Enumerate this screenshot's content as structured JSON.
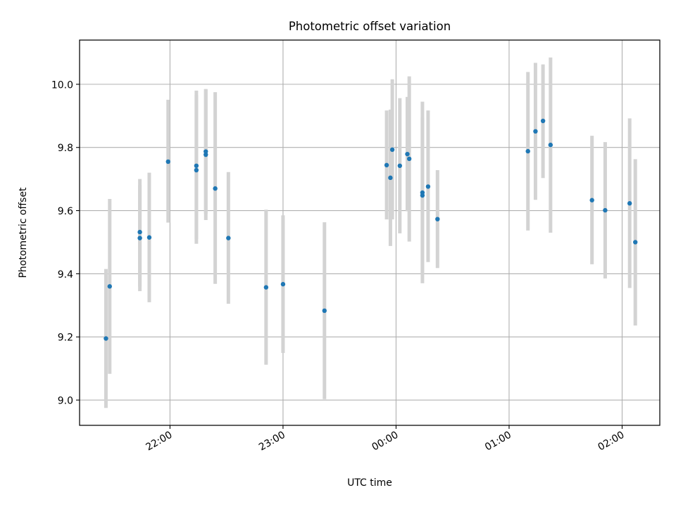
{
  "chart_data": {
    "type": "scatter",
    "title": "Photometric offset variation",
    "xlabel": "UTC time",
    "ylabel": "Photometric offset",
    "grid": true,
    "xlim": [
      "21:12",
      "02:20"
    ],
    "ylim": [
      8.92,
      10.14
    ],
    "x_tick_labels": [
      "22:00",
      "23:00",
      "00:00",
      "01:00",
      "02:00"
    ],
    "y_tick_labels": [
      "9.0",
      "9.2",
      "9.4",
      "9.6",
      "9.8",
      "10.0"
    ],
    "colors": {
      "points": "#1f77b4",
      "error_bars": "#d3d3d3",
      "grid": "#b0b0b0"
    },
    "points": [
      {
        "x": "21:26",
        "y": 9.195,
        "low": 8.975,
        "high": 9.415
      },
      {
        "x": "21:28",
        "y": 9.36,
        "low": 9.083,
        "high": 9.637
      },
      {
        "x": "21:44",
        "y": 9.532,
        "low": 9.36,
        "high": 9.7
      },
      {
        "x": "21:44",
        "y": 9.513,
        "low": 9.345,
        "high": 9.68
      },
      {
        "x": "21:49",
        "y": 9.515,
        "low": 9.31,
        "high": 9.72
      },
      {
        "x": "21:59",
        "y": 9.755,
        "low": 9.562,
        "high": 9.951
      },
      {
        "x": "22:14",
        "y": 9.742,
        "low": 9.51,
        "high": 9.98
      },
      {
        "x": "22:14",
        "y": 9.728,
        "low": 9.495,
        "high": 9.965
      },
      {
        "x": "22:19",
        "y": 9.777,
        "low": 9.57,
        "high": 9.985
      },
      {
        "x": "22:19",
        "y": 9.787,
        "low": 9.59,
        "high": 9.984
      },
      {
        "x": "22:24",
        "y": 9.67,
        "low": 9.368,
        "high": 9.975
      },
      {
        "x": "22:31",
        "y": 9.513,
        "low": 9.305,
        "high": 9.722
      },
      {
        "x": "22:51",
        "y": 9.357,
        "low": 9.112,
        "high": 9.603
      },
      {
        "x": "23:00",
        "y": 9.367,
        "low": 9.149,
        "high": 9.585
      },
      {
        "x": "23:22",
        "y": 9.283,
        "low": 9.003,
        "high": 9.563
      },
      {
        "x": "23:55",
        "y": 9.744,
        "low": 9.572,
        "high": 9.917
      },
      {
        "x": "23:57",
        "y": 9.704,
        "low": 9.488,
        "high": 9.92
      },
      {
        "x": "23:58",
        "y": 9.793,
        "low": 9.572,
        "high": 10.016
      },
      {
        "x": "00:02",
        "y": 9.742,
        "low": 9.528,
        "high": 9.956
      },
      {
        "x": "00:06",
        "y": 9.779,
        "low": 9.598,
        "high": 9.96
      },
      {
        "x": "00:07",
        "y": 9.764,
        "low": 9.502,
        "high": 10.025
      },
      {
        "x": "00:14",
        "y": 9.648,
        "low": 9.4,
        "high": 9.895
      },
      {
        "x": "00:14",
        "y": 9.657,
        "low": 9.37,
        "high": 9.945
      },
      {
        "x": "00:17",
        "y": 9.676,
        "low": 9.437,
        "high": 9.917
      },
      {
        "x": "00:22",
        "y": 9.573,
        "low": 9.418,
        "high": 9.728
      },
      {
        "x": "01:10",
        "y": 9.788,
        "low": 9.537,
        "high": 10.039
      },
      {
        "x": "01:14",
        "y": 9.851,
        "low": 9.634,
        "high": 10.068
      },
      {
        "x": "01:18",
        "y": 9.884,
        "low": 9.703,
        "high": 10.063
      },
      {
        "x": "01:22",
        "y": 9.808,
        "low": 9.53,
        "high": 10.085
      },
      {
        "x": "01:44",
        "y": 9.633,
        "low": 9.43,
        "high": 9.837
      },
      {
        "x": "01:51",
        "y": 9.601,
        "low": 9.385,
        "high": 9.817
      },
      {
        "x": "02:04",
        "y": 9.623,
        "low": 9.355,
        "high": 9.892
      },
      {
        "x": "02:07",
        "y": 9.5,
        "low": 9.236,
        "high": 9.763
      }
    ]
  }
}
